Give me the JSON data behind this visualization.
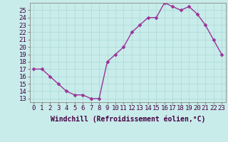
{
  "x": [
    0,
    1,
    2,
    3,
    4,
    5,
    6,
    7,
    8,
    9,
    10,
    11,
    12,
    13,
    14,
    15,
    16,
    17,
    18,
    19,
    20,
    21,
    22,
    23
  ],
  "y": [
    17,
    17,
    16,
    15,
    14,
    13.5,
    13.5,
    13,
    13,
    18,
    19,
    20,
    22,
    23,
    24,
    24,
    26,
    25.5,
    25,
    25.5,
    24.5,
    23,
    21,
    19
  ],
  "line_color": "#993399",
  "marker_color": "#993399",
  "bg_color": "#c8ecea",
  "grid_color": "#aad8d6",
  "xlabel": "Windchill (Refroidissement éolien,°C)",
  "xlim": [
    -0.5,
    23.5
  ],
  "ylim": [
    12.5,
    26.0
  ],
  "yticks": [
    13,
    14,
    15,
    16,
    17,
    18,
    19,
    20,
    21,
    22,
    23,
    24,
    25
  ],
  "xtick_labels": [
    "0",
    "1",
    "2",
    "3",
    "4",
    "5",
    "6",
    "7",
    "8",
    "9",
    "10",
    "11",
    "12",
    "13",
    "14",
    "15",
    "16",
    "17",
    "18",
    "19",
    "20",
    "21",
    "22",
    "23"
  ],
  "xlabel_fontsize": 7,
  "tick_fontsize": 6.5,
  "line_width": 1.0,
  "marker_size": 2.5
}
